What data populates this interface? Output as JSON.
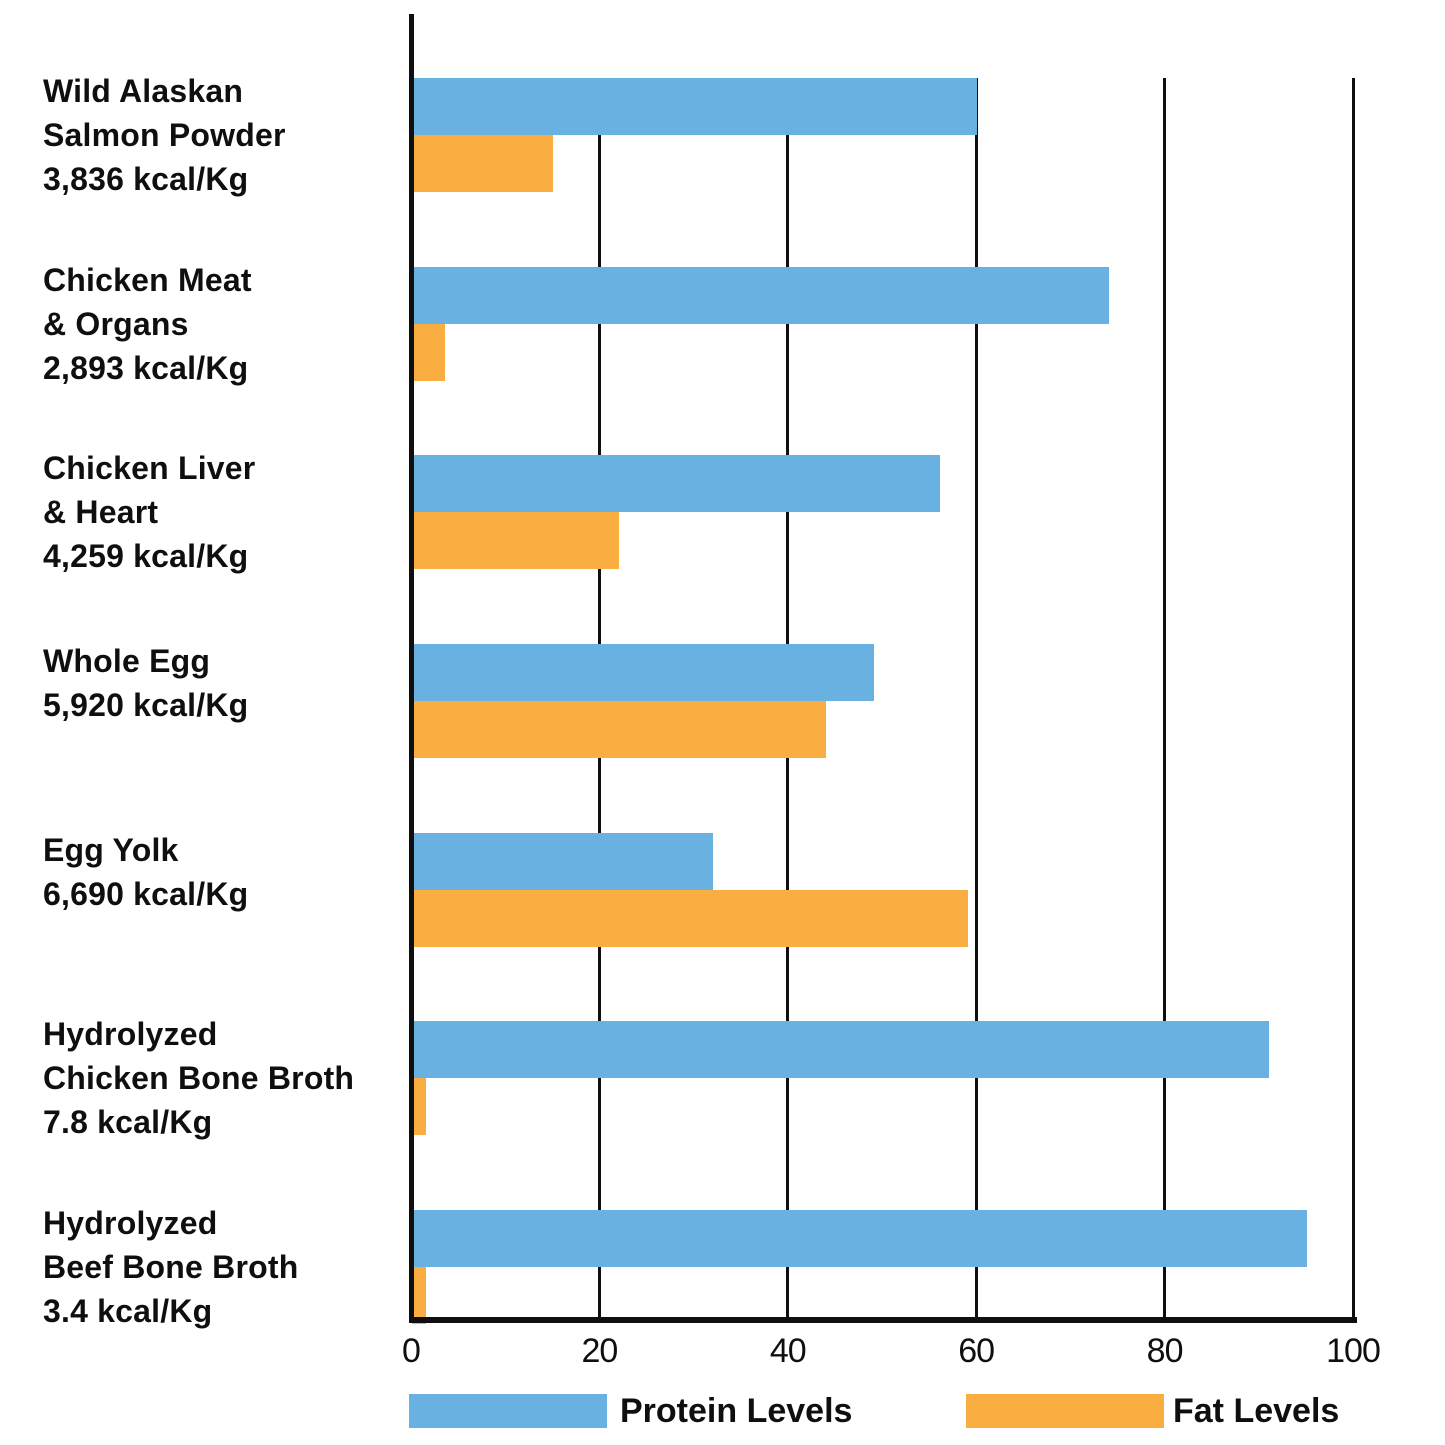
{
  "chart_data": {
    "type": "bar",
    "orientation": "horizontal",
    "title": "",
    "xlabel": "",
    "ylabel": "",
    "xlim": [
      0,
      100
    ],
    "x_ticks": [
      0,
      20,
      40,
      60,
      80,
      100
    ],
    "grid": true,
    "legend_position": "bottom",
    "categories": [
      {
        "label_lines": [
          "Wild Alaskan",
          "Salmon Powder"
        ],
        "kcal_line": "3,836 kcal/Kg"
      },
      {
        "label_lines": [
          "Chicken Meat",
          "& Organs"
        ],
        "kcal_line": "2,893 kcal/Kg"
      },
      {
        "label_lines": [
          "Chicken Liver",
          "& Heart"
        ],
        "kcal_line": "4,259 kcal/Kg"
      },
      {
        "label_lines": [
          "Whole Egg"
        ],
        "kcal_line": "5,920 kcal/Kg"
      },
      {
        "label_lines": [
          "Egg Yolk"
        ],
        "kcal_line": "6,690 kcal/Kg"
      },
      {
        "label_lines": [
          "Hydrolyzed",
          "Chicken Bone Broth"
        ],
        "kcal_line": "7.8 kcal/Kg"
      },
      {
        "label_lines": [
          "Hydrolyzed",
          "Beef Bone Broth"
        ],
        "kcal_line": "3.4 kcal/Kg"
      }
    ],
    "series": [
      {
        "name": "Protein Levels",
        "color": "#69B1E1",
        "values": [
          60,
          74,
          56,
          49,
          32,
          91,
          95
        ]
      },
      {
        "name": "Fat Levels",
        "color": "#FAAD40",
        "values": [
          15,
          3.5,
          22,
          44,
          59,
          1.5,
          1.5
        ]
      }
    ],
    "axis_color": "#0f0f0f"
  }
}
